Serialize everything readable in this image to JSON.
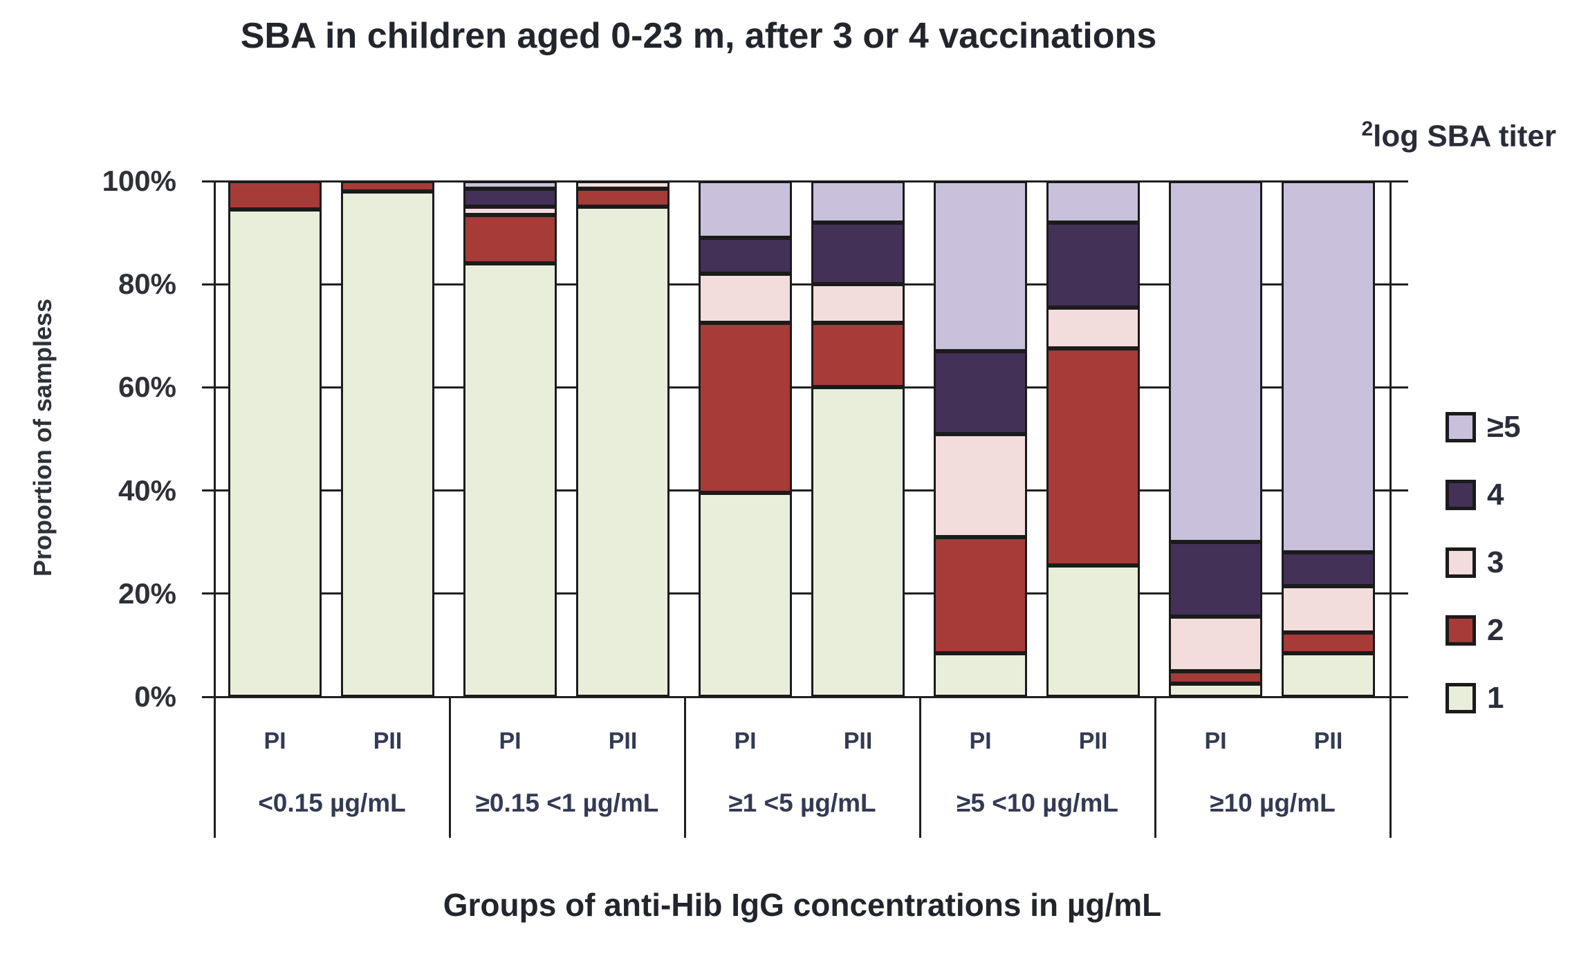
{
  "chart_data": {
    "type": "bar",
    "stacked": true,
    "title": "SBA in children aged 0-23 m, after 3 or 4 vaccinations",
    "xlabel": "Groups of anti-Hib IgG concentrations in µg/mL",
    "ylabel": "Proportion of sampless",
    "legend_title": {
      "sup": "2",
      "text": "log SBA titer"
    },
    "y_ticks": [
      "100%",
      "80%",
      "60%",
      "40%",
      "20%",
      "0%"
    ],
    "ylim": [
      0,
      100
    ],
    "grid": true,
    "stack_order_bottom_up": [
      "s1",
      "s2",
      "s3",
      "s4",
      "s5"
    ],
    "colors": {
      "s1": "#e9eedb",
      "s2": "#a63b38",
      "s3": "#f3dcdc",
      "s4": "#433157",
      "s5": "#c9c0dc",
      "outline": "#1b1b1b"
    },
    "legend_items_top_down": [
      {
        "key": "s5",
        "label": "≥5"
      },
      {
        "key": "s4",
        "label": "4"
      },
      {
        "key": "s3",
        "label": "3"
      },
      {
        "key": "s2",
        "label": "2"
      },
      {
        "key": "s1",
        "label": "1"
      }
    ],
    "groups": [
      {
        "label": "<0.15 µg/mL",
        "bars": [
          {
            "label": "PI",
            "segments": {
              "s1": 94.5,
              "s2": 5.5,
              "s3": 0,
              "s4": 0,
              "s5": 0
            }
          },
          {
            "label": "PII",
            "segments": {
              "s1": 98,
              "s2": 2,
              "s3": 0,
              "s4": 0,
              "s5": 0
            }
          }
        ]
      },
      {
        "label": "≥0.15 <1 µg/mL",
        "bars": [
          {
            "label": "PI",
            "segments": {
              "s1": 84,
              "s2": 9.5,
              "s3": 1.5,
              "s4": 3.5,
              "s5": 1.5
            }
          },
          {
            "label": "PII",
            "segments": {
              "s1": 95,
              "s2": 3.5,
              "s3": 1.5,
              "s4": 0,
              "s5": 0
            }
          }
        ]
      },
      {
        "label": "≥1 <5 µg/mL",
        "bars": [
          {
            "label": "PI",
            "segments": {
              "s1": 39.5,
              "s2": 33,
              "s3": 9.5,
              "s4": 7,
              "s5": 11
            }
          },
          {
            "label": "PII",
            "segments": {
              "s1": 60,
              "s2": 12.5,
              "s3": 7.5,
              "s4": 12,
              "s5": 8
            }
          }
        ]
      },
      {
        "label": "≥5 <10 µg/mL",
        "bars": [
          {
            "label": "PI",
            "segments": {
              "s1": 8.5,
              "s2": 22.5,
              "s3": 20,
              "s4": 16,
              "s5": 33
            }
          },
          {
            "label": "PII",
            "segments": {
              "s1": 25.5,
              "s2": 42,
              "s3": 8,
              "s4": 16.5,
              "s5": 8
            }
          }
        ]
      },
      {
        "label": "≥10 µg/mL",
        "bars": [
          {
            "label": "PI",
            "segments": {
              "s1": 2.5,
              "s2": 2.5,
              "s3": 10.5,
              "s4": 14.5,
              "s5": 70
            }
          },
          {
            "label": "PII",
            "segments": {
              "s1": 8.5,
              "s2": 4,
              "s3": 9,
              "s4": 6.5,
              "s5": 72
            }
          }
        ]
      }
    ]
  }
}
